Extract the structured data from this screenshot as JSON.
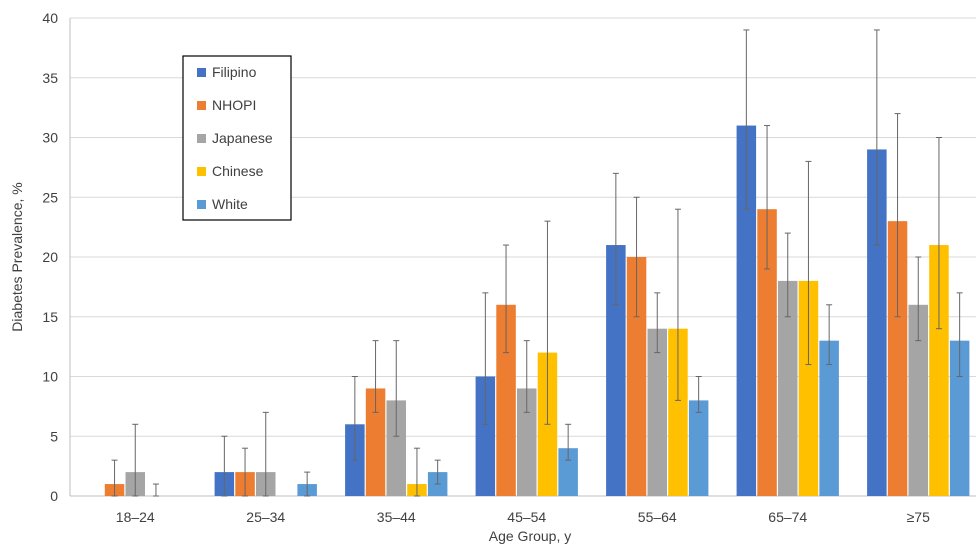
{
  "chart_data": {
    "type": "bar",
    "xlabel": "Age Group, y",
    "ylabel": "Diabetes Prevalence, %",
    "ylim": [
      0,
      40
    ],
    "yticks": [
      0,
      5,
      10,
      15,
      20,
      25,
      30,
      35,
      40
    ],
    "grid": true,
    "legend_position": "top-left",
    "categories": [
      "18–24",
      "25–34",
      "35–44",
      "45–54",
      "55–64",
      "65–74",
      "≥75"
    ],
    "series": [
      {
        "name": "Filipino",
        "color": "#4472C4",
        "values": [
          null,
          2,
          6,
          10,
          21,
          31,
          29
        ],
        "ci_low": [
          null,
          0,
          3,
          6,
          16,
          24,
          21
        ],
        "ci_high": [
          null,
          5,
          10,
          17,
          27,
          39,
          39
        ]
      },
      {
        "name": "NHOPI",
        "color": "#ED7D31",
        "values": [
          1,
          2,
          9,
          16,
          20,
          24,
          23
        ],
        "ci_low": [
          0,
          0,
          7,
          12,
          15,
          19,
          15
        ],
        "ci_high": [
          3,
          4,
          13,
          21,
          25,
          31,
          32
        ]
      },
      {
        "name": "Japanese",
        "color": "#A5A5A5",
        "values": [
          2,
          2,
          8,
          9,
          14,
          18,
          16
        ],
        "ci_low": [
          0,
          0,
          5,
          7,
          12,
          15,
          13
        ],
        "ci_high": [
          6,
          7,
          13,
          13,
          17,
          22,
          20
        ]
      },
      {
        "name": "Chinese",
        "color": "#FFC000",
        "values": [
          0,
          null,
          1,
          12,
          14,
          18,
          21
        ],
        "ci_low": [
          0,
          null,
          0,
          6,
          8,
          11,
          14
        ],
        "ci_high": [
          1,
          null,
          4,
          23,
          24,
          28,
          30
        ]
      },
      {
        "name": "White",
        "color": "#5B9BD5",
        "values": [
          null,
          1,
          2,
          4,
          8,
          13,
          13
        ],
        "ci_low": [
          null,
          0,
          1,
          3,
          7,
          11,
          10
        ],
        "ci_high": [
          null,
          2,
          3,
          6,
          10,
          16,
          17
        ]
      }
    ]
  }
}
